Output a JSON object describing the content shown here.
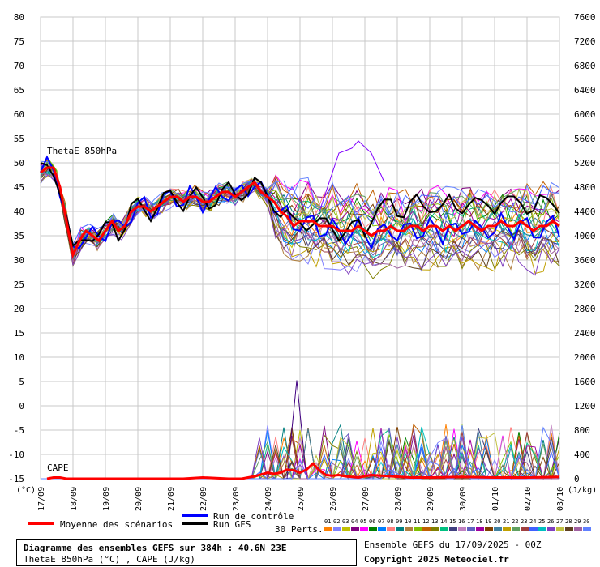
{
  "chart_data": {
    "type": "line",
    "left_axis": {
      "unit": "(°C)",
      "ticks": [
        -15,
        -10,
        -5,
        0,
        5,
        10,
        15,
        20,
        25,
        30,
        35,
        40,
        45,
        50,
        55,
        60,
        65,
        70,
        75,
        80
      ]
    },
    "right_axis": {
      "unit": "(J/kg)",
      "ticks": [
        0,
        400,
        800,
        1200,
        1600,
        2000,
        2400,
        2800,
        3200,
        3600,
        4000,
        4400,
        4800,
        5200,
        5600,
        6000,
        6400,
        6800,
        7200,
        7600
      ]
    },
    "x_ticks": [
      "17/09",
      "18/09",
      "19/09",
      "20/09",
      "21/09",
      "22/09",
      "23/09",
      "24/09",
      "25/09",
      "26/09",
      "27/09",
      "28/09",
      "29/09",
      "30/09",
      "01/10",
      "02/10",
      "03/10"
    ],
    "panel_labels": {
      "thetae": "ThetaE 850hPa",
      "cape": "CAPE"
    },
    "grid": true,
    "series": [
      {
        "name": "Moyenne des scénarios",
        "color": "#ff0000",
        "thetae_x": [
          0,
          0.2,
          0.4,
          0.6,
          0.8,
          1.0,
          1.2,
          1.4,
          1.6,
          1.8,
          2.0,
          2.2,
          2.4,
          2.6,
          2.8,
          3.0,
          3.2,
          3.4,
          3.6,
          3.8,
          4.0,
          4.2,
          4.4,
          4.6,
          4.8,
          5.0,
          5.2,
          5.4,
          5.6,
          5.8,
          6.0,
          6.2,
          6.4,
          6.6,
          6.8,
          7.0,
          7.2,
          7.4,
          7.6,
          7.8,
          8.0,
          8.2,
          8.4,
          8.6,
          8.8,
          9.0,
          9.2,
          9.4,
          9.6,
          9.8,
          10.0,
          10.2,
          10.4,
          10.6,
          10.8,
          11.0,
          11.2,
          11.4,
          11.6,
          11.8,
          12.0,
          12.2,
          12.4,
          12.6,
          12.8,
          13.0,
          13.2,
          13.4,
          13.6,
          13.8,
          14.0,
          14.2,
          14.4,
          14.6,
          14.8,
          15.0,
          15.2,
          15.4,
          15.6,
          15.8,
          16.0
        ],
        "thetae": [
          48,
          49,
          49,
          45,
          38,
          31,
          34,
          36,
          35,
          34,
          36,
          38,
          36,
          37,
          40,
          41,
          41,
          40,
          41,
          42,
          43,
          43,
          42,
          43,
          43,
          42,
          42,
          43,
          44,
          44,
          43,
          44,
          45,
          46,
          44,
          43,
          42,
          40,
          39,
          37,
          38,
          38,
          38,
          37,
          37,
          37,
          36,
          36,
          36,
          37,
          36,
          35,
          36,
          36,
          37,
          36,
          36,
          37,
          37,
          36,
          37,
          37,
          36,
          37,
          36,
          37,
          38,
          37,
          36,
          37,
          37,
          38,
          37,
          37,
          38,
          37,
          36,
          37,
          37,
          38,
          37
        ],
        "cape_x": [
          0.2,
          0.4,
          0.6,
          0.8,
          4.4,
          5.0,
          5.8,
          6.2,
          6.6,
          7.0,
          7.2,
          7.4,
          7.6,
          7.8,
          8.0,
          8.2,
          8.4,
          8.6,
          8.8,
          9.0,
          9.2,
          9.4,
          9.6,
          9.8,
          10.2,
          10.8,
          11.4,
          12.0,
          13.0,
          14.0,
          15.0,
          16.0
        ],
        "cape": [
          0,
          20,
          20,
          0,
          0,
          20,
          0,
          0,
          40,
          100,
          80,
          100,
          150,
          140,
          100,
          150,
          250,
          140,
          60,
          50,
          60,
          40,
          30,
          20,
          60,
          40,
          20,
          20,
          30,
          20,
          20,
          30
        ]
      },
      {
        "name": "Run de contrôle",
        "color": "#0000ff"
      },
      {
        "name": "Run GFS",
        "color": "#000000"
      }
    ],
    "perturbations": {
      "label": "30 Perts.",
      "members": [
        "01",
        "02",
        "03",
        "04",
        "05",
        "06",
        "07",
        "08",
        "09",
        "10",
        "11",
        "12",
        "13",
        "14",
        "15",
        "16",
        "17",
        "18",
        "19",
        "20",
        "21",
        "22",
        "23",
        "24",
        "25",
        "26",
        "27",
        "28",
        "29",
        "30"
      ],
      "colors": [
        "#ff8000",
        "#8080ff",
        "#c0c000",
        "#800080",
        "#ff00ff",
        "#008000",
        "#0080ff",
        "#ff8080",
        "#008080",
        "#b08040",
        "#80c000",
        "#c06000",
        "#808000",
        "#00c080",
        "#404080",
        "#c080c0",
        "#6060c0",
        "#a000a0",
        "#804000",
        "#4080a0",
        "#c0a000",
        "#60a060",
        "#a04040",
        "#4060ff",
        "#00c0c0",
        "#8040c0",
        "#c0c040",
        "#604020",
        "#a060a0",
        "#6080ff"
      ]
    },
    "thetae_max_value": 54.5,
    "cape_max_value_jkg": 1620
  },
  "legend": {
    "mean": "Moyenne des scénarios",
    "control": "Run de contrôle",
    "gfs": "Run GFS",
    "perts": "30 Perts."
  },
  "info": {
    "title": "Diagramme des ensembles GEFS sur 384h : 40.6N 23E",
    "subtitle": "ThetaE 850hPa (°C) , CAPE (J/kg)",
    "run": "Ensemble GEFS du 17/09/2025 - 00Z",
    "copyright": "Copyright 2025 Meteociel.fr"
  }
}
